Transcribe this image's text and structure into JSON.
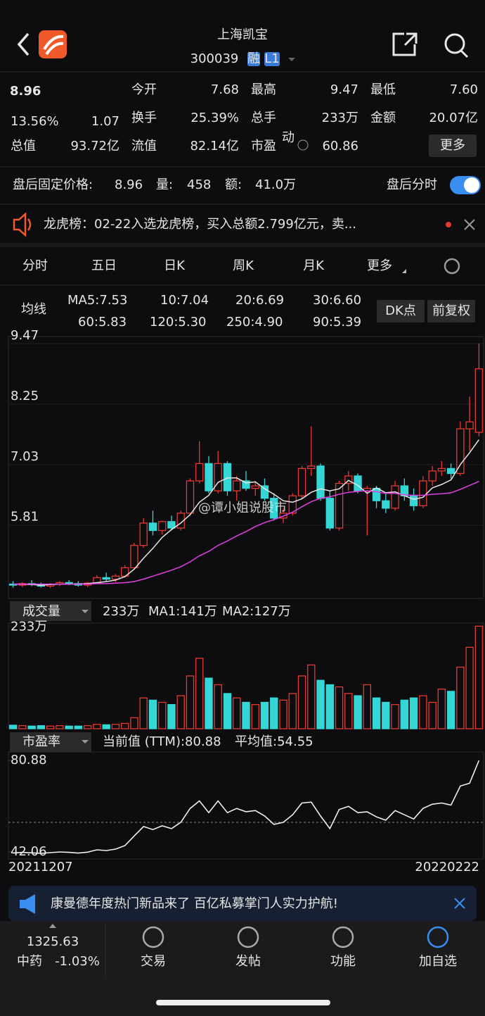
{
  "header": {
    "title": "上海凯宝",
    "code": "300039",
    "badges": [
      "融",
      "L1"
    ]
  },
  "quote": {
    "price": "8.96",
    "change_pct": "13.56%",
    "change": "1.07",
    "fields": [
      {
        "label": "今开",
        "value": "7.68",
        "color": "#2fc24f"
      },
      {
        "label": "最高",
        "value": "9.47",
        "color": "#e8382f"
      },
      {
        "label": "最低",
        "value": "7.60",
        "color": "#2fc24f"
      },
      {
        "label": "换手",
        "value": "25.39%",
        "color": "#e6e6e6"
      },
      {
        "label": "总手",
        "value": "233万",
        "color": "#e6e6e6"
      },
      {
        "label": "金额",
        "value": "20.07亿",
        "color": "#e6e6e6"
      },
      {
        "label": "总值",
        "value": "93.72亿",
        "color": "#e6e6e6"
      },
      {
        "label": "流值",
        "value": "82.14亿",
        "color": "#e6e6e6"
      },
      {
        "label": "市盈",
        "sup": "动",
        "value": "60.86",
        "color": "#e6e6e6"
      }
    ],
    "more": "更多"
  },
  "after_hours": {
    "price_label": "盘后固定价格:",
    "price": "8.96",
    "volume_label": "量:",
    "volume": "458",
    "amount_label": "额:",
    "amount": "41.0万",
    "toggle_label": "盘后分时"
  },
  "notice": "龙虎榜：02-22入选龙虎榜，买入总额2.799亿元，卖...",
  "tabs": [
    "分时",
    "五日",
    "日K",
    "周K",
    "月K",
    "更多"
  ],
  "active_tab": 2,
  "ma_legend": {
    "title": "均线",
    "items": [
      {
        "text": "MA5:7.53",
        "color": "#e6e6e6"
      },
      {
        "text": "10:7.04",
        "color": "#f0d050"
      },
      {
        "text": "20:6.69",
        "color": "#e040e0"
      },
      {
        "text": "30:6.60",
        "color": "#30c040"
      },
      {
        "text": "60:5.83",
        "color": "#a0a0a0"
      },
      {
        "text": "120:5.30",
        "color": "#4a8ff0"
      },
      {
        "text": "250:4.90",
        "color": "#80c8f0"
      },
      {
        "text": "90:5.39",
        "color": "#e8382f"
      }
    ]
  },
  "buttons": [
    "DK点",
    "前复权"
  ],
  "kline": {
    "ylim": [
      4.33,
      9.61
    ],
    "yticks": [
      9.47,
      8.25,
      7.03,
      5.81
    ],
    "up_color": "#e8382f",
    "down_color": "#35d6d6",
    "open": [
      4.62,
      4.6,
      4.63,
      4.61,
      4.58,
      4.62,
      4.65,
      4.63,
      4.6,
      4.64,
      4.75,
      4.72,
      4.78,
      4.95,
      5.4,
      5.85,
      5.7,
      5.88,
      5.75,
      6.05,
      6.7,
      7.05,
      6.5,
      7.05,
      6.5,
      6.7,
      6.55,
      6.6,
      6.35,
      5.95,
      6.05,
      6.4,
      6.95,
      7.0,
      6.35,
      5.75,
      6.65,
      6.8,
      6.5,
      6.55,
      6.3,
      6.15,
      6.6,
      6.4,
      6.2,
      6.7,
      6.9,
      6.95,
      6.85,
      7.75,
      7.68
    ],
    "high": [
      4.68,
      4.66,
      4.7,
      4.65,
      4.64,
      4.68,
      4.7,
      4.68,
      4.66,
      4.8,
      4.85,
      4.82,
      5.0,
      5.45,
      5.95,
      6.1,
      5.9,
      6.0,
      6.1,
      6.75,
      7.5,
      7.2,
      7.3,
      7.1,
      6.8,
      6.9,
      6.7,
      6.75,
      6.45,
      6.15,
      6.45,
      7.0,
      7.8,
      7.05,
      6.5,
      6.7,
      6.9,
      6.85,
      6.6,
      6.6,
      6.45,
      6.7,
      6.75,
      6.55,
      6.8,
      7.0,
      7.1,
      7.05,
      7.9,
      8.4,
      9.47
    ],
    "low": [
      4.55,
      4.56,
      4.58,
      4.55,
      4.54,
      4.58,
      4.6,
      4.57,
      4.56,
      4.62,
      4.68,
      4.66,
      4.75,
      4.92,
      5.35,
      5.6,
      5.62,
      5.7,
      5.7,
      6.0,
      6.65,
      6.45,
      6.45,
      6.4,
      6.3,
      6.5,
      6.4,
      6.3,
      5.9,
      5.85,
      6.0,
      6.35,
      6.8,
      6.3,
      5.7,
      5.7,
      6.5,
      6.45,
      5.6,
      6.15,
      6.05,
      6.1,
      6.3,
      6.1,
      6.15,
      6.6,
      6.8,
      6.75,
      6.8,
      7.3,
      7.6
    ],
    "close": [
      4.6,
      4.63,
      4.61,
      4.58,
      4.62,
      4.65,
      4.63,
      4.6,
      4.64,
      4.75,
      4.72,
      4.78,
      4.95,
      5.4,
      5.85,
      5.7,
      5.88,
      5.75,
      6.05,
      6.7,
      7.05,
      6.5,
      7.05,
      6.5,
      6.7,
      6.55,
      6.6,
      6.35,
      5.95,
      6.05,
      6.4,
      6.95,
      7.0,
      6.35,
      5.75,
      6.65,
      6.8,
      6.5,
      6.55,
      6.3,
      6.15,
      6.6,
      6.4,
      6.2,
      6.7,
      6.9,
      6.95,
      6.85,
      7.75,
      7.89,
      8.96
    ],
    "ma": [
      {
        "color": "#e6e6e6",
        "values": [
          4.62,
          4.62,
          4.61,
          4.6,
          4.61,
          4.62,
          4.62,
          4.62,
          4.63,
          4.65,
          4.67,
          4.7,
          4.77,
          4.92,
          5.14,
          5.34,
          5.56,
          5.72,
          5.85,
          6.02,
          6.27,
          6.41,
          6.67,
          6.76,
          6.76,
          6.66,
          6.68,
          6.54,
          6.43,
          6.3,
          6.27,
          6.34,
          6.47,
          6.54,
          6.5,
          6.54,
          6.71,
          6.61,
          6.45,
          6.56,
          6.46,
          6.48,
          6.4,
          6.33,
          6.37,
          6.56,
          6.63,
          6.72,
          7.03,
          7.27,
          7.53
        ]
      },
      {
        "color": "#e040e0",
        "values": [
          4.62,
          4.62,
          4.62,
          4.62,
          4.62,
          4.62,
          4.62,
          4.62,
          4.62,
          4.63,
          4.63,
          4.64,
          4.65,
          4.67,
          4.72,
          4.78,
          4.84,
          4.9,
          4.97,
          5.07,
          5.19,
          5.28,
          5.4,
          5.49,
          5.59,
          5.68,
          5.78,
          5.86,
          5.92,
          5.99,
          6.07,
          6.18,
          6.28,
          6.35,
          6.38,
          6.43,
          6.47,
          6.49,
          6.5,
          6.48,
          6.45,
          6.45,
          6.42,
          6.41,
          6.41,
          6.43,
          6.44,
          6.46,
          6.53,
          6.61,
          6.69
        ]
      }
    ]
  },
  "watermark": "@谭小姐说股市",
  "volume": {
    "menu": "成交量",
    "current": "233万",
    "ma1": "MA1:141万",
    "ma2": "MA2:127万",
    "ylim": [
      0,
      240
    ],
    "yticks": [
      {
        "value": 233,
        "label": "233万"
      }
    ],
    "values": [
      8,
      7,
      6,
      7,
      6,
      7,
      6,
      6,
      7,
      10,
      9,
      10,
      12,
      25,
      70,
      65,
      60,
      55,
      75,
      120,
      160,
      115,
      100,
      80,
      70,
      60,
      55,
      60,
      70,
      65,
      80,
      120,
      145,
      110,
      100,
      95,
      80,
      75,
      100,
      70,
      60,
      55,
      65,
      70,
      75,
      60,
      90,
      85,
      140,
      185,
      233
    ]
  },
  "pe": {
    "menu": "市盈率",
    "current": "当前值 (TTM):80.88",
    "average": {
      "value": 54.55,
      "label": "平均值:54.55"
    },
    "ylim": [
      39,
      84.5
    ],
    "yticks": [
      80.88,
      42.06
    ],
    "values": [
      41.5,
      41.8,
      41.6,
      41.4,
      41.7,
      42.0,
      41.8,
      41.5,
      41.9,
      42.9,
      42.6,
      43.2,
      44.7,
      48.8,
      52.8,
      51.5,
      53.1,
      51.9,
      54.6,
      60.5,
      63.7,
      58.7,
      63.7,
      58.7,
      60.5,
      59.1,
      59.6,
      57.3,
      53.7,
      54.6,
      57.8,
      62.8,
      63.2,
      57.3,
      51.9,
      60.0,
      61.4,
      58.7,
      59.1,
      56.9,
      55.5,
      59.6,
      57.8,
      56.0,
      60.5,
      62.3,
      62.8,
      61.9,
      70.0,
      71.2,
      80.88
    ]
  },
  "dates": [
    "20211207",
    "20220222"
  ],
  "promo": "康曼德年度热门新品来了 百亿私募掌门人实力护航!",
  "bottom": {
    "index_value": "1325.63",
    "index_name": "中药",
    "index_change": "-1.03%",
    "nav": [
      "交易",
      "发帖",
      "功能",
      "加自选"
    ]
  }
}
